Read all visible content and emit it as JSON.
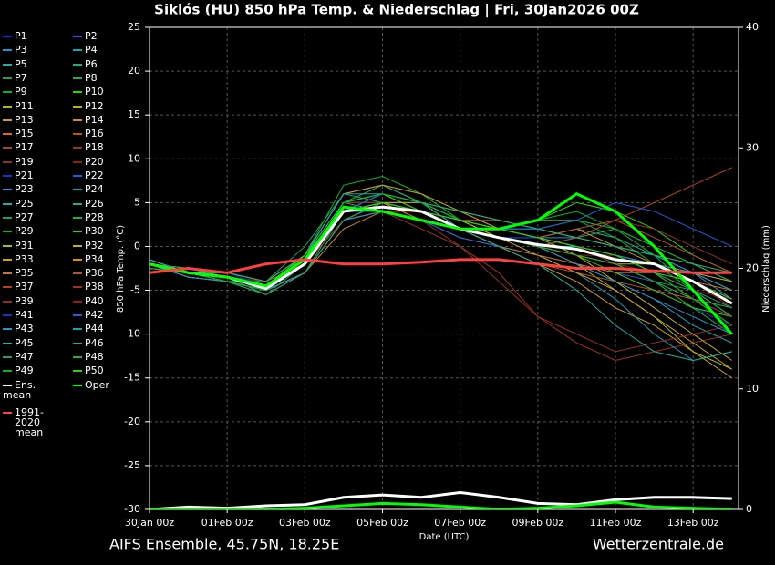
{
  "chart_data": {
    "type": "line",
    "title": "Siklós  (HU)  850 hPa Temp. & Niederschlag | Fri, 30Jan2026 00Z",
    "subtitle": "AIFS Ensemble, 45.75N, 18.25E",
    "source": "Wetterzentrale.de",
    "x_label": "Date (UTC)",
    "y_label": "850 hPa Temp. (°C)",
    "y2_label": "Niederschlag (mm)",
    "x": [
      0,
      1,
      2,
      3,
      4,
      5,
      6,
      7,
      8,
      9,
      10,
      11,
      12,
      13,
      14,
      15
    ],
    "xlim": [
      0,
      15.17
    ],
    "xticks": [
      {
        "value": 0,
        "label": "30Jan 00z"
      },
      {
        "value": 2,
        "label": "01Feb 00z"
      },
      {
        "value": 4,
        "label": "03Feb 00z"
      },
      {
        "value": 6,
        "label": "05Feb 00z"
      },
      {
        "value": 8,
        "label": "07Feb 00z"
      },
      {
        "value": 10,
        "label": "09Feb 00z"
      },
      {
        "value": 12,
        "label": "11Feb 00z"
      },
      {
        "value": 14,
        "label": "13Feb 00z"
      }
    ],
    "ylim": [
      -30,
      25
    ],
    "yticks": [
      -30,
      -25,
      -20,
      -15,
      -10,
      -5,
      0,
      5,
      10,
      15,
      20,
      25
    ],
    "y2lim": [
      0,
      40
    ],
    "y2ticks": [
      0,
      10,
      20,
      30,
      40
    ],
    "grid": true,
    "series": [
      {
        "name": "P1",
        "color": "#1a2fd1",
        "values": [
          -2,
          -3,
          -4,
          -5,
          -3,
          3,
          4,
          3,
          2,
          0,
          -1,
          -2,
          -3,
          -5,
          -7,
          -9
        ]
      },
      {
        "name": "P2",
        "color": "#1f5fe0",
        "values": [
          -2,
          -3,
          -3,
          -4,
          -1,
          5,
          5,
          4,
          3,
          2,
          1,
          0,
          -1,
          -2,
          -3,
          -4
        ]
      },
      {
        "name": "P3",
        "color": "#2a8fd0",
        "values": [
          -1.5,
          -3,
          -4,
          -5,
          -2,
          4,
          6,
          5,
          3,
          2,
          2,
          1,
          0,
          -1,
          -3,
          -6
        ]
      },
      {
        "name": "P4",
        "color": "#1fa0b0",
        "values": [
          -2,
          -3,
          -3.5,
          -5,
          -1,
          5,
          4,
          3,
          1,
          0,
          -1,
          -2,
          -4,
          -6,
          -9,
          -11
        ]
      },
      {
        "name": "P5",
        "color": "#1fb0a0",
        "values": [
          -2.5,
          -3,
          -4,
          -4,
          -2,
          3,
          5,
          4,
          2,
          1,
          1,
          2,
          1,
          -1,
          -3,
          -5
        ]
      },
      {
        "name": "P6",
        "color": "#20b080",
        "values": [
          -2,
          -2.5,
          -3.5,
          -5.5,
          -3,
          4,
          5,
          5,
          2,
          1,
          0,
          -1,
          -2,
          -3,
          -5,
          -8
        ]
      },
      {
        "name": "P7",
        "color": "#1fa060",
        "values": [
          -2,
          -3,
          -3,
          -4,
          0,
          6,
          5,
          3,
          2,
          1,
          0,
          1,
          2,
          0,
          -2,
          -4
        ]
      },
      {
        "name": "P8",
        "color": "#20b040",
        "values": [
          -2,
          -3.5,
          -4,
          -5,
          -2,
          5,
          7,
          6,
          4,
          2,
          1,
          0,
          -2,
          -4,
          -7,
          -10
        ]
      },
      {
        "name": "P9",
        "color": "#10b020",
        "values": [
          -1.5,
          -3,
          -4,
          -5,
          -1,
          7,
          8,
          6,
          3,
          2,
          3,
          3,
          1,
          -2,
          -5,
          -8
        ]
      },
      {
        "name": "P10",
        "color": "#30d010",
        "values": [
          -2,
          -3,
          -3.5,
          -4.5,
          -2,
          4,
          4,
          4,
          2,
          2,
          3,
          5,
          4,
          2,
          -1,
          -3
        ]
      },
      {
        "name": "P11",
        "color": "#a0c020",
        "values": [
          -2,
          -3,
          -4,
          -5,
          -3,
          3,
          5,
          4,
          3,
          1,
          0,
          -2,
          -5,
          -8,
          -12,
          -14
        ]
      },
      {
        "name": "P12",
        "color": "#c0b020",
        "values": [
          -2.5,
          -3,
          -3.5,
          -5,
          -2,
          4,
          6,
          5,
          3,
          2,
          1,
          0,
          -1,
          -3,
          -6,
          -9
        ]
      },
      {
        "name": "P13",
        "color": "#d0a020",
        "values": [
          -2,
          -3,
          -3,
          -4,
          -1,
          5,
          6,
          4,
          2,
          0,
          -2,
          -4,
          -7,
          -9,
          -12,
          -15
        ]
      },
      {
        "name": "P14",
        "color": "#d09020",
        "values": [
          -2,
          -3,
          -4,
          -5,
          -3,
          2,
          4,
          4,
          3,
          2,
          1,
          2,
          0,
          -2,
          -4,
          -6
        ]
      },
      {
        "name": "P15",
        "color": "#d07020",
        "values": [
          -2,
          -2.5,
          -3.5,
          -4.5,
          -1,
          6,
          7,
          5,
          3,
          2,
          1,
          0,
          -1,
          -2,
          -3,
          -5
        ]
      },
      {
        "name": "P16",
        "color": "#c05020",
        "values": [
          -2,
          -3,
          -4,
          -5.5,
          -3,
          3,
          4,
          3,
          1,
          0,
          -2,
          -3,
          -4,
          -5,
          -6,
          -8
        ]
      },
      {
        "name": "P17",
        "color": "#b04020",
        "values": [
          -1.5,
          -3,
          -3.5,
          -4,
          -2,
          4,
          5,
          4,
          3,
          3,
          2,
          1,
          0,
          -1,
          -2,
          -3
        ]
      },
      {
        "name": "P18",
        "color": "#a03020",
        "values": [
          -2,
          -3,
          -4,
          -5,
          -2,
          3,
          4,
          2,
          0,
          -3,
          -8,
          -11,
          -13,
          -12,
          -11,
          -10
        ]
      },
      {
        "name": "P19",
        "color": "#903020",
        "values": [
          -2,
          -3,
          -3.5,
          -4.5,
          -1,
          4,
          5,
          5,
          4,
          3,
          2,
          1,
          3,
          2,
          0,
          -2
        ]
      },
      {
        "name": "P20",
        "color": "#902010",
        "values": [
          -2.5,
          -3,
          -4,
          -5,
          -3,
          3,
          5,
          4,
          2,
          1,
          0,
          -1,
          -1,
          -2,
          -4,
          -7
        ]
      },
      {
        "name": "P21",
        "color": "#1a2fd1",
        "values": [
          -2,
          -3,
          -3,
          -4,
          -1,
          5,
          5,
          4,
          2,
          1,
          1,
          0,
          -1,
          -3,
          -5,
          -7
        ]
      },
      {
        "name": "P22",
        "color": "#1f5fe0",
        "values": [
          -2,
          -3,
          -4,
          -5,
          -2,
          4,
          4,
          3,
          1,
          0,
          -1,
          -2,
          -3,
          -4,
          -6,
          -8
        ]
      },
      {
        "name": "P23",
        "color": "#2a8fd0",
        "values": [
          -2,
          -3,
          -3.5,
          -4.5,
          -2,
          5,
          6,
          5,
          3,
          2,
          1,
          1,
          0,
          -1,
          -3,
          -5
        ]
      },
      {
        "name": "P24",
        "color": "#1fa0b0",
        "values": [
          -2,
          -3.5,
          -4,
          -5,
          -3,
          3,
          5,
          4,
          2,
          0,
          -1,
          -3,
          -6,
          -10,
          -13,
          -12
        ]
      },
      {
        "name": "P25",
        "color": "#1fb0a0",
        "values": [
          -1.5,
          -3,
          -4,
          -5,
          -2,
          4,
          6,
          5,
          2,
          1,
          0,
          0,
          -1,
          -2,
          -4,
          -6
        ]
      },
      {
        "name": "P26",
        "color": "#20b080",
        "values": [
          -2,
          -3,
          -3,
          -4,
          -1,
          6,
          7,
          5,
          4,
          3,
          2,
          1,
          0,
          -1,
          -2,
          -4
        ]
      },
      {
        "name": "P27",
        "color": "#1fa060",
        "values": [
          -2,
          -3,
          -4,
          -5.5,
          -2,
          4,
          5,
          3,
          2,
          1,
          0,
          -1,
          -2,
          -4,
          -5,
          -7
        ]
      },
      {
        "name": "P28",
        "color": "#20b040",
        "values": [
          -2,
          -2.5,
          -3.5,
          -4.5,
          -1,
          5,
          5,
          4,
          3,
          2,
          2,
          3,
          2,
          0,
          -2,
          -4
        ]
      },
      {
        "name": "P29",
        "color": "#10b020",
        "values": [
          -2,
          -3,
          -4,
          -5,
          -2,
          3,
          4,
          4,
          3,
          2,
          1,
          0,
          -1,
          -3,
          -6,
          -9
        ]
      },
      {
        "name": "P30",
        "color": "#30d010",
        "values": [
          -2.5,
          -3,
          -3.5,
          -4.5,
          -2,
          5,
          6,
          4,
          2,
          1,
          0,
          -1,
          -3,
          -5,
          -7,
          -8
        ]
      },
      {
        "name": "P31",
        "color": "#a0c020",
        "values": [
          -2,
          -3,
          -3,
          -4,
          -1,
          4,
          5,
          4,
          3,
          1,
          0,
          -1,
          -2,
          -2,
          -3,
          -4
        ]
      },
      {
        "name": "P32",
        "color": "#c0b020",
        "values": [
          -2,
          -3,
          -4,
          -5,
          -3,
          3,
          5,
          5,
          3,
          2,
          1,
          -1,
          -4,
          -7,
          -10,
          -13
        ]
      },
      {
        "name": "P33",
        "color": "#d0a020",
        "values": [
          -2,
          -3.5,
          -4,
          -5,
          -2,
          4,
          5,
          4,
          2,
          1,
          -1,
          -3,
          -5,
          -8,
          -11,
          -14
        ]
      },
      {
        "name": "P34",
        "color": "#d09020",
        "values": [
          -1.5,
          -3,
          -3.5,
          -4.5,
          -1,
          6,
          7,
          6,
          4,
          2,
          1,
          0,
          -1,
          -2,
          -3,
          -4
        ]
      },
      {
        "name": "P35",
        "color": "#d07020",
        "values": [
          -2,
          -3,
          -4,
          -5,
          -2,
          4,
          5,
          3,
          2,
          0,
          -1,
          -2,
          -3,
          -3,
          -4,
          -5
        ]
      },
      {
        "name": "P36",
        "color": "#c05020",
        "values": [
          -2,
          -3,
          -3,
          -4,
          -1,
          5,
          5,
          4,
          3,
          2,
          1,
          2,
          3,
          1,
          -1,
          -3
        ]
      },
      {
        "name": "P37",
        "color": "#b04020",
        "values": [
          -2,
          -3,
          -4,
          -5.5,
          -3,
          3,
          4,
          4,
          2,
          1,
          0,
          1,
          3,
          5,
          7,
          9
        ]
      },
      {
        "name": "P38",
        "color": "#a03020",
        "values": [
          -2.5,
          -3,
          -3.5,
          -4.5,
          -2,
          4,
          6,
          5,
          3,
          2,
          1,
          0,
          -2,
          -4,
          -6,
          -8
        ]
      },
      {
        "name": "P39",
        "color": "#903020",
        "values": [
          -2,
          -3,
          -4,
          -5,
          -2,
          3,
          4,
          3,
          0,
          -4,
          -8,
          -10,
          -12,
          -11,
          -10,
          -9
        ]
      },
      {
        "name": "P40",
        "color": "#902010",
        "values": [
          -2,
          -3,
          -3.5,
          -4,
          -1,
          5,
          5,
          4,
          2,
          1,
          0,
          -1,
          -2,
          -3,
          -5,
          -6
        ]
      },
      {
        "name": "P41",
        "color": "#1a2fd1",
        "values": [
          -2,
          -3,
          -3,
          -4.5,
          -2,
          4,
          5,
          4,
          3,
          2,
          1,
          0,
          -1,
          -2,
          -4,
          -6
        ]
      },
      {
        "name": "P42",
        "color": "#1f5fe0",
        "values": [
          -2,
          -3,
          -4,
          -5,
          -2,
          4,
          6,
          5,
          3,
          2,
          2,
          3,
          5,
          4,
          2,
          0
        ]
      },
      {
        "name": "P43",
        "color": "#2a8fd0",
        "values": [
          -2,
          -3.5,
          -4,
          -5,
          -3,
          3,
          4,
          3,
          2,
          1,
          0,
          -2,
          -4,
          -6,
          -8,
          -10
        ]
      },
      {
        "name": "P44",
        "color": "#1fa0b0",
        "values": [
          -1.5,
          -3,
          -3.5,
          -4.5,
          -1,
          6,
          6,
          5,
          3,
          2,
          1,
          0,
          -1,
          -2,
          -3,
          -5
        ]
      },
      {
        "name": "P45",
        "color": "#1fb0a0",
        "values": [
          -2,
          -3,
          -4,
          -5,
          -2,
          4,
          5,
          4,
          2,
          0,
          -2,
          -5,
          -9,
          -12,
          -13,
          -12
        ]
      },
      {
        "name": "P46",
        "color": "#20b080",
        "values": [
          -2,
          -3,
          -3,
          -4,
          -1,
          5,
          6,
          5,
          4,
          3,
          2,
          1,
          0,
          -1,
          -2,
          -3
        ]
      },
      {
        "name": "P47",
        "color": "#1fa060",
        "values": [
          -2,
          -3,
          -4,
          -5.5,
          -3,
          3,
          5,
          4,
          3,
          2,
          1,
          0,
          -1,
          -3,
          -5,
          -8
        ]
      },
      {
        "name": "P48",
        "color": "#20b040",
        "values": [
          -2.5,
          -3,
          -3.5,
          -4.5,
          -2,
          4,
          5,
          4,
          2,
          1,
          0,
          -1,
          -2,
          -4,
          -6,
          -7
        ]
      },
      {
        "name": "P49",
        "color": "#10b020",
        "values": [
          -2,
          -3,
          -4,
          -5,
          -2,
          5,
          6,
          5,
          3,
          2,
          3,
          4,
          2,
          -1,
          -5,
          -10
        ]
      },
      {
        "name": "P50",
        "color": "#30d010",
        "values": [
          -2,
          -3,
          -3.5,
          -4.5,
          -1,
          4,
          5,
          4,
          3,
          2,
          1,
          0,
          -1,
          -3,
          -4,
          -6
        ]
      },
      {
        "name": "Ens. mean",
        "color": "#ffffff",
        "values": [
          -2,
          -3,
          -3.5,
          -4.8,
          -2,
          4,
          4.5,
          4,
          2,
          1,
          0.2,
          -0.3,
          -1.5,
          -2,
          -4,
          -6.5
        ],
        "precip": [
          0,
          0.2,
          0.1,
          0.3,
          0.4,
          1,
          1.2,
          1,
          1.4,
          1,
          0.5,
          0.4,
          0.8,
          1,
          1,
          0.9
        ]
      },
      {
        "name": "Oper",
        "color": "#00ff00",
        "values": [
          -2,
          -3,
          -3.5,
          -4.5,
          -1.5,
          4.5,
          4,
          3,
          2,
          2,
          3,
          6,
          4,
          0,
          -5,
          -10
        ],
        "precip": [
          0,
          0,
          0,
          0,
          0.1,
          0.3,
          0.5,
          0.4,
          0.2,
          0,
          0.1,
          0.3,
          0.6,
          0.2,
          0.1,
          0
        ]
      },
      {
        "name": "1991-2020 mean",
        "color": "#ff4040",
        "values": [
          -3,
          -2.5,
          -3,
          -2,
          -1.5,
          -2,
          -2,
          -1.8,
          -1.5,
          -1.5,
          -2,
          -2.5,
          -2.5,
          -2.8,
          -3,
          -3
        ]
      }
    ]
  }
}
